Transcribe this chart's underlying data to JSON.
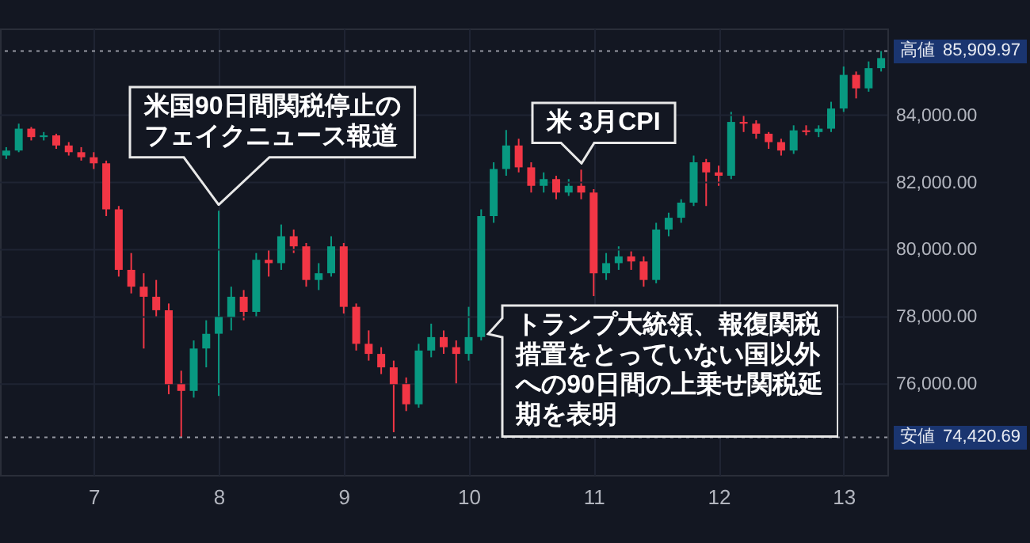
{
  "chart_data": {
    "type": "candlestick",
    "x": [
      6.3,
      6.4,
      6.5,
      6.6,
      6.7,
      6.8,
      6.9,
      7.0,
      7.1,
      7.2,
      7.3,
      7.4,
      7.5,
      7.6,
      7.7,
      7.8,
      7.9,
      8.0,
      8.1,
      8.2,
      8.3,
      8.4,
      8.5,
      8.6,
      8.7,
      8.8,
      8.9,
      9.0,
      9.1,
      9.2,
      9.3,
      9.4,
      9.5,
      9.6,
      9.7,
      9.8,
      9.9,
      10.0,
      10.1,
      10.2,
      10.3,
      10.4,
      10.5,
      10.6,
      10.7,
      10.8,
      10.9,
      11.0,
      11.1,
      11.2,
      11.3,
      11.4,
      11.5,
      11.6,
      11.7,
      11.8,
      11.9,
      12.0,
      12.1,
      12.2,
      12.3,
      12.4,
      12.5,
      12.6,
      12.7,
      12.8,
      12.9,
      13.0,
      13.1,
      13.2,
      13.3
    ],
    "ohlc": [
      [
        82800,
        83050,
        82700,
        82950
      ],
      [
        82950,
        83750,
        82900,
        83600
      ],
      [
        83600,
        83650,
        83250,
        83350
      ],
      [
        83350,
        83500,
        83250,
        83400
      ],
      [
        83400,
        83450,
        83000,
        83100
      ],
      [
        83100,
        83200,
        82800,
        82900
      ],
      [
        82900,
        83050,
        82650,
        82750
      ],
      [
        82750,
        82900,
        82400,
        82570
      ],
      [
        82570,
        82650,
        81000,
        81200
      ],
      [
        81200,
        81300,
        79200,
        79400
      ],
      [
        79400,
        79900,
        78700,
        78900
      ],
      [
        78900,
        79300,
        77060,
        78600
      ],
      [
        78600,
        79100,
        78000,
        78200
      ],
      [
        78200,
        78400,
        75700,
        76000
      ],
      [
        76000,
        76400,
        74420.69,
        75800
      ],
      [
        75800,
        77300,
        75600,
        77060
      ],
      [
        77060,
        77900,
        76500,
        77500
      ],
      [
        77500,
        81160,
        75650,
        78000
      ],
      [
        78000,
        78900,
        77600,
        78600
      ],
      [
        78600,
        78800,
        77900,
        78150
      ],
      [
        78150,
        79900,
        78000,
        79700
      ],
      [
        79700,
        80000,
        79200,
        79600
      ],
      [
        79600,
        80750,
        79400,
        80400
      ],
      [
        80400,
        80600,
        79900,
        80100
      ],
      [
        80100,
        80200,
        78900,
        79100
      ],
      [
        79100,
        79600,
        78800,
        79300
      ],
      [
        79300,
        80400,
        79200,
        80100
      ],
      [
        80100,
        80200,
        78100,
        78300
      ],
      [
        78300,
        78400,
        77000,
        77200
      ],
      [
        77200,
        77600,
        76700,
        76900
      ],
      [
        76900,
        77100,
        76300,
        76500
      ],
      [
        76500,
        76700,
        74570,
        76000
      ],
      [
        76000,
        76200,
        75200,
        75400
      ],
      [
        75400,
        77200,
        75300,
        77000
      ],
      [
        77000,
        77800,
        76800,
        77400
      ],
      [
        77400,
        77600,
        76900,
        77100
      ],
      [
        77100,
        77300,
        76000,
        76900
      ],
      [
        76900,
        78300,
        76700,
        77400
      ],
      [
        77400,
        81200,
        77300,
        81000
      ],
      [
        81000,
        82600,
        80800,
        82400
      ],
      [
        82400,
        83560,
        82200,
        83100
      ],
      [
        83100,
        83300,
        82300,
        82450
      ],
      [
        82450,
        82600,
        81700,
        81900
      ],
      [
        81900,
        82300,
        81700,
        82100
      ],
      [
        82100,
        82200,
        81500,
        81700
      ],
      [
        81700,
        82100,
        81600,
        81900
      ],
      [
        81900,
        82380,
        81500,
        81700
      ],
      [
        81700,
        81800,
        78620,
        79300
      ],
      [
        79300,
        79900,
        79100,
        79600
      ],
      [
        79600,
        80100,
        79400,
        79800
      ],
      [
        79800,
        79950,
        79400,
        79650
      ],
      [
        79650,
        79800,
        78900,
        79100
      ],
      [
        79100,
        80800,
        79000,
        80600
      ],
      [
        80600,
        81100,
        80400,
        80950
      ],
      [
        80950,
        81500,
        80800,
        81400
      ],
      [
        81400,
        82800,
        81300,
        82600
      ],
      [
        82600,
        82700,
        81300,
        82300
      ],
      [
        82300,
        82500,
        81900,
        82200
      ],
      [
        82200,
        84100,
        82100,
        83800
      ],
      [
        83800,
        84000,
        83500,
        83750
      ],
      [
        83750,
        83850,
        83300,
        83450
      ],
      [
        83450,
        83500,
        83000,
        83200
      ],
      [
        83200,
        83300,
        82800,
        82950
      ],
      [
        82950,
        83700,
        82850,
        83550
      ],
      [
        83550,
        83700,
        83400,
        83500
      ],
      [
        83500,
        83700,
        83350,
        83600
      ],
      [
        83600,
        84400,
        83500,
        84200
      ],
      [
        84200,
        85450,
        84100,
        85200
      ],
      [
        85200,
        85300,
        84500,
        84800
      ],
      [
        84800,
        85600,
        84700,
        85400
      ],
      [
        85400,
        85909.97,
        85300,
        85700
      ]
    ],
    "colors": [
      "#089981",
      "#089981",
      "#f23645",
      "#089981",
      "#f23645",
      "#f23645",
      "#f23645",
      "#f23645",
      "#f23645",
      "#f23645",
      "#f23645",
      "#f23645",
      "#f23645",
      "#f23645",
      "#f23645",
      "#089981",
      "#089981",
      "#089981",
      "#089981",
      "#f23645",
      "#089981",
      "#f23645",
      "#089981",
      "#f23645",
      "#f23645",
      "#089981",
      "#089981",
      "#f23645",
      "#f23645",
      "#f23645",
      "#f23645",
      "#f23645",
      "#f23645",
      "#089981",
      "#089981",
      "#f23645",
      "#f23645",
      "#089981",
      "#089981",
      "#089981",
      "#089981",
      "#f23645",
      "#f23645",
      "#089981",
      "#f23645",
      "#089981",
      "#f23645",
      "#f23645",
      "#089981",
      "#089981",
      "#f23645",
      "#f23645",
      "#089981",
      "#089981",
      "#089981",
      "#089981",
      "#f23645",
      "#f23645",
      "#089981",
      "#f23645",
      "#f23645",
      "#f23645",
      "#f23645",
      "#089981",
      "#f23645",
      "#089981",
      "#089981",
      "#089981",
      "#f23645",
      "#089981",
      "#089981"
    ],
    "xlim": [
      6.25,
      13.35
    ],
    "xticks": [
      7,
      8,
      9,
      10,
      11,
      12,
      13
    ],
    "ylim": [
      73300,
      86580
    ],
    "yticks": [
      {
        "value": 76000,
        "label": "76,000.00"
      },
      {
        "value": 78000,
        "label": "78,000.00"
      },
      {
        "value": 80000,
        "label": "80,000.00"
      },
      {
        "value": 82000,
        "label": "82,000.00"
      },
      {
        "value": 84000,
        "label": "84,000.00"
      }
    ],
    "grid": true,
    "ref_lines": [
      {
        "axis": "y",
        "value": 85909.97,
        "label": "高値 85,909.97",
        "color": "#9598a1",
        "line_style": "dotted"
      },
      {
        "axis": "y",
        "value": 74420.69,
        "label": "安値 74,420.69",
        "color": "#9598a1",
        "line_style": "dotted"
      }
    ],
    "annotations": [
      {
        "text": "米国90日間関税停止のフェイクニュース報道",
        "x": 8.0,
        "y": 81160
      },
      {
        "text": "米 3月CPI",
        "x": 10.9,
        "y": 82380
      },
      {
        "text": "トランプ大統領、報復関税措置をとっていない国以外への90日間の上乗せ関税延期を表明",
        "x": 10.1,
        "y": 77500
      }
    ]
  }
}
